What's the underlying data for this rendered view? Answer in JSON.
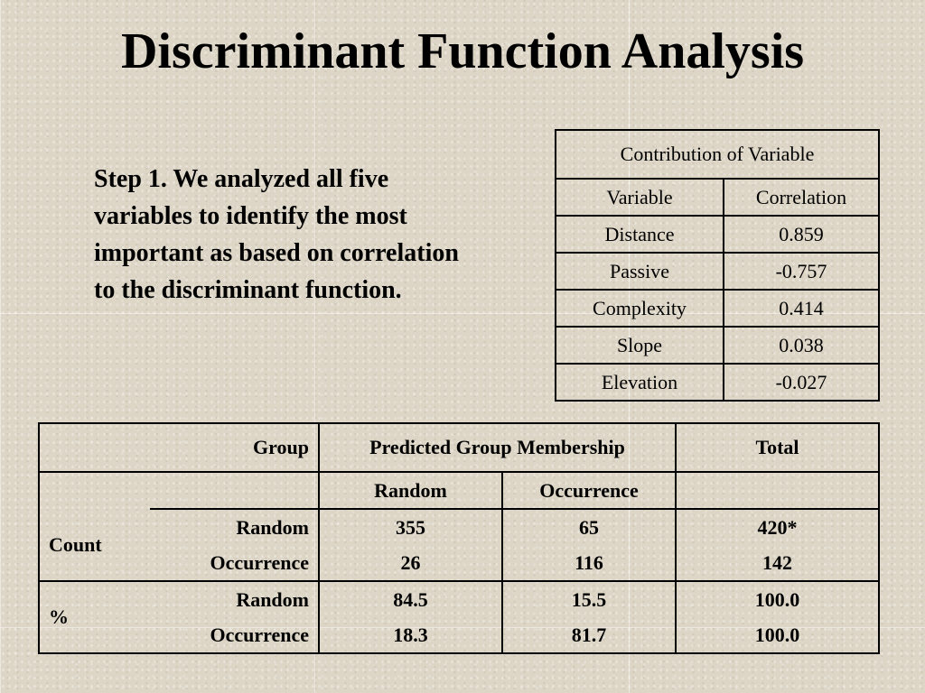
{
  "title": "Discriminant Function Analysis",
  "intro": "Step 1.  We analyzed all five variables to identify the most important as based on correlation to the discriminant function.",
  "contribution_table": {
    "title": "Contribution of Variable",
    "headers": [
      "Variable",
      "Correlation"
    ],
    "rows": [
      [
        "Distance",
        "0.859"
      ],
      [
        "Passive",
        "-0.757"
      ],
      [
        "Complexity",
        "0.414"
      ],
      [
        "Slope",
        "0.038"
      ],
      [
        "Elevation",
        "-0.027"
      ]
    ]
  },
  "classification_table": {
    "group_label": "Group",
    "predicted_label": "Predicted Group Membership",
    "total_label": "Total",
    "sub_headers": [
      "Random",
      "Occurrence"
    ],
    "sections": [
      {
        "label": "Count",
        "rows": [
          {
            "group": "Random",
            "random": "355",
            "occurrence": "65",
            "total": "420*"
          },
          {
            "group": "Occurrence",
            "random": "26",
            "occurrence": "116",
            "total": "142"
          }
        ]
      },
      {
        "label": "%",
        "rows": [
          {
            "group": "Random",
            "random": "84.5",
            "occurrence": "15.5",
            "total": "100.0"
          },
          {
            "group": "Occurrence",
            "random": "18.3",
            "occurrence": "81.7",
            "total": "100.0"
          }
        ]
      }
    ]
  }
}
